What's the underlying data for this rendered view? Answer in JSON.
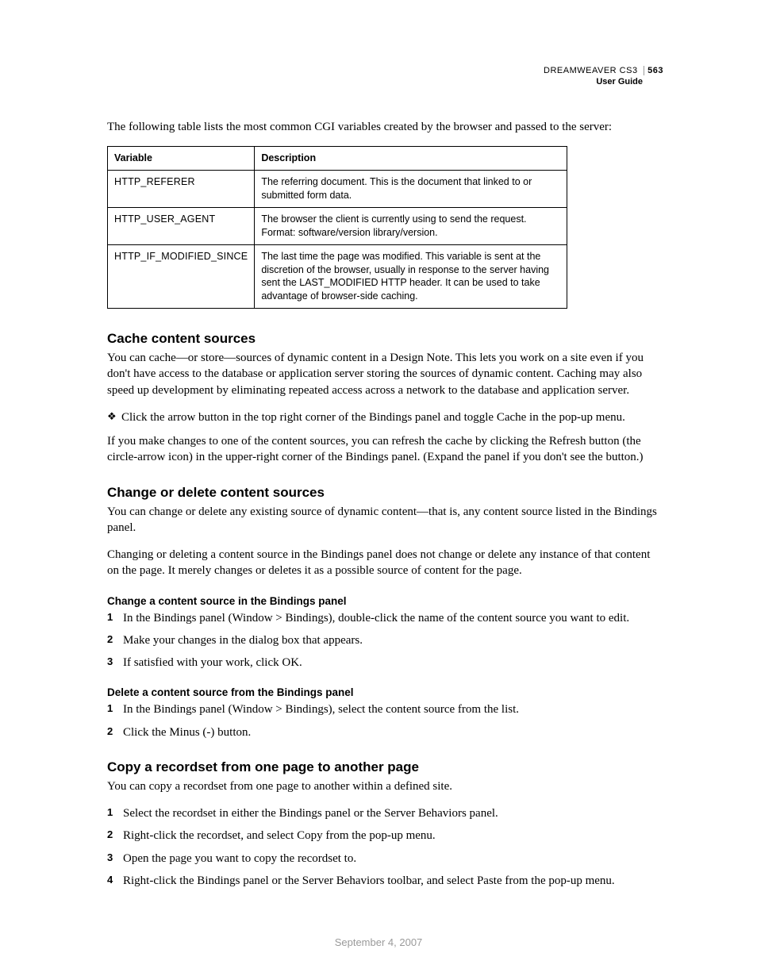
{
  "header": {
    "product": "DREAMWEAVER CS3",
    "page_number": "563",
    "subtitle": "User Guide"
  },
  "intro_paragraph": "The following table lists the most common CGI variables created by the browser and passed to the server:",
  "table": {
    "headers": {
      "col1": "Variable",
      "col2": "Description"
    },
    "rows": [
      {
        "var": "HTTP_REFERER",
        "desc": "The referring document. This is the document that linked to or submitted form data."
      },
      {
        "var": "HTTP_USER_AGENT",
        "desc": "The browser the client is currently using to send the request. Format: software/version library/version."
      },
      {
        "var": "HTTP_IF_MODIFIED_SINCE",
        "desc": "The last time the page was modified. This variable is sent at the discretion of the browser, usually in response to the server having sent the LAST_MODIFIED HTTP header. It can be used to take advantage of browser-side caching."
      }
    ]
  },
  "sections": {
    "cache": {
      "title": "Cache content sources",
      "p1": "You can cache—or store—sources of dynamic content in a Design Note. This lets you work on a site even if you don't have access to the database or application server storing the sources of dynamic content. Caching may also speed up development by eliminating repeated access across a network to the database and application server.",
      "bullet": "Click the arrow button in the top right corner of the Bindings panel and toggle Cache in the pop-up menu.",
      "p2": "If you make changes to one of the content sources, you can refresh the cache by clicking the Refresh button (the circle-arrow icon) in the upper-right corner of the Bindings panel. (Expand the panel if you don't see the button.)"
    },
    "change": {
      "title": "Change or delete content sources",
      "p1": "You can change or delete any existing source of dynamic content—that is, any content source listed in the Bindings panel.",
      "p2": "Changing or deleting a content source in the Bindings panel does not change or delete any instance of that content on the page. It merely changes or deletes it as a possible source of content for the page.",
      "sub1": {
        "title": "Change a content source in the Bindings panel",
        "steps": [
          "In the Bindings panel (Window > Bindings), double-click the name of the content source you want to edit.",
          "Make your changes in the dialog box that appears.",
          "If satisfied with your work, click OK."
        ]
      },
      "sub2": {
        "title": "Delete a content source from the Bindings panel",
        "steps": [
          "In the Bindings panel (Window > Bindings), select the content source from the list.",
          "Click the Minus (-) button."
        ]
      }
    },
    "copy": {
      "title": "Copy a recordset from one page to another page",
      "p1": "You can copy a recordset from one page to another within a defined site.",
      "steps": [
        "Select the recordset in either the Bindings panel or the Server Behaviors panel.",
        "Right-click the recordset, and select Copy from the pop-up menu.",
        "Open the page you want to copy the recordset to.",
        "Right-click the Bindings panel or the Server Behaviors toolbar, and select Paste from the pop-up menu."
      ]
    }
  },
  "footer_date": "September 4, 2007"
}
